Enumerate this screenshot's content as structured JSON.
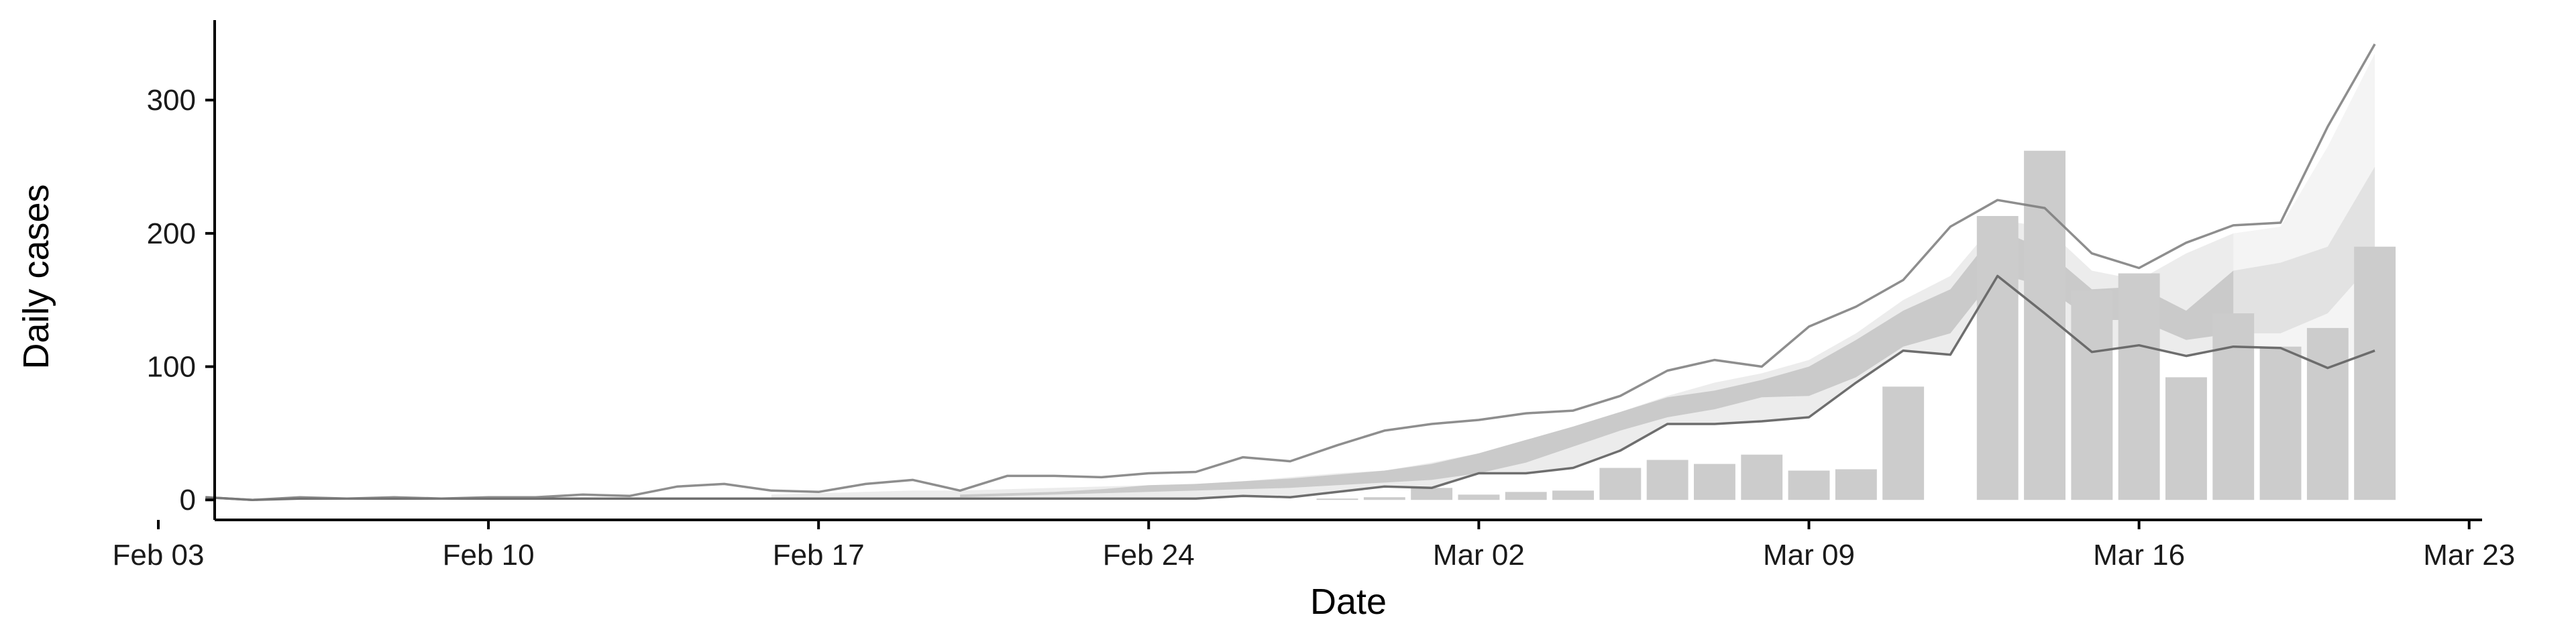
{
  "chart_data": {
    "type": "bar",
    "title": "",
    "xlabel": "Date",
    "ylabel": "Daily cases",
    "x_start_date": "2020-02-03",
    "xlim": [
      "Feb 03",
      "Mar 23"
    ],
    "ylim": [
      -15,
      360
    ],
    "grid": false,
    "legend": "none",
    "x_ticks": [
      {
        "date": "Feb 03",
        "label": "Feb 03"
      },
      {
        "date": "Feb 10",
        "label": "Feb 10"
      },
      {
        "date": "Feb 17",
        "label": "Feb 17"
      },
      {
        "date": "Feb 24",
        "label": "Feb 24"
      },
      {
        "date": "Mar 02",
        "label": "Mar 02"
      },
      {
        "date": "Mar 09",
        "label": "Mar 09"
      },
      {
        "date": "Mar 16",
        "label": "Mar 16"
      },
      {
        "date": "Mar 23",
        "label": "Mar 23"
      }
    ],
    "y_ticks": [
      {
        "value": 0,
        "label": "0"
      },
      {
        "value": 100,
        "label": "100"
      },
      {
        "value": 200,
        "label": "200"
      },
      {
        "value": 300,
        "label": "300"
      }
    ],
    "bars": {
      "name": "",
      "x": [
        "Feb 28",
        "Feb 29",
        "Mar 01",
        "Mar 02",
        "Mar 03",
        "Mar 04",
        "Mar 05",
        "Mar 06",
        "Mar 07",
        "Mar 08",
        "Mar 09",
        "Mar 10",
        "Mar 11",
        "Mar 13",
        "Mar 14",
        "Mar 15",
        "Mar 16",
        "Mar 17",
        "Mar 18",
        "Mar 19",
        "Mar 20",
        "Mar 21"
      ],
      "values": [
        1,
        2,
        9,
        4,
        6,
        7,
        24,
        30,
        27,
        34,
        22,
        23,
        85,
        213,
        262,
        157,
        170,
        92,
        140,
        115,
        129,
        190
      ]
    },
    "series": [
      {
        "name": "",
        "x": [
          "Feb 04",
          "Feb 05",
          "Feb 06",
          "Feb 07",
          "Feb 08",
          "Feb 09",
          "Feb 10",
          "Feb 11",
          "Feb 12",
          "Feb 13",
          "Feb 14",
          "Feb 15",
          "Feb 16",
          "Feb 17",
          "Feb 18",
          "Feb 19",
          "Feb 20",
          "Feb 21",
          "Feb 22",
          "Feb 23",
          "Feb 24",
          "Feb 25",
          "Feb 26",
          "Feb 27",
          "Feb 28",
          "Feb 29",
          "Mar 01",
          "Mar 02",
          "Mar 03",
          "Mar 04",
          "Mar 05",
          "Mar 06",
          "Mar 07",
          "Mar 08",
          "Mar 09",
          "Mar 10",
          "Mar 11",
          "Mar 12",
          "Mar 13",
          "Mar 14",
          "Mar 15",
          "Mar 16",
          "Mar 17",
          "Mar 18",
          "Mar 19",
          "Mar 20",
          "Mar 21"
        ],
        "values": [
          2,
          0,
          1,
          1,
          1,
          1,
          1,
          1,
          1,
          1,
          1,
          1,
          1,
          1,
          1,
          1,
          1,
          1,
          1,
          1,
          1,
          1,
          3,
          2,
          6,
          10,
          9,
          20,
          20,
          24,
          37,
          57,
          57,
          59,
          62,
          88,
          112,
          109,
          168,
          140,
          111,
          116,
          108,
          115,
          114,
          99,
          112
        ]
      },
      {
        "name": "",
        "x": [
          "Feb 04",
          "Feb 05",
          "Feb 06",
          "Feb 07",
          "Feb 08",
          "Feb 09",
          "Feb 10",
          "Feb 11",
          "Feb 12",
          "Feb 13",
          "Feb 14",
          "Feb 15",
          "Feb 16",
          "Feb 17",
          "Feb 18",
          "Feb 19",
          "Feb 20",
          "Feb 21",
          "Feb 22",
          "Feb 23",
          "Feb 24",
          "Feb 25",
          "Feb 26",
          "Feb 27",
          "Feb 28",
          "Feb 29",
          "Mar 01",
          "Mar 02",
          "Mar 03",
          "Mar 04",
          "Mar 05",
          "Mar 06",
          "Mar 07",
          "Mar 08",
          "Mar 09",
          "Mar 10",
          "Mar 11",
          "Mar 12",
          "Mar 13",
          "Mar 14",
          "Mar 15",
          "Mar 16",
          "Mar 17",
          "Mar 18",
          "Mar 19",
          "Mar 20",
          "Mar 21"
        ],
        "values": [
          2,
          0,
          2,
          1,
          2,
          1,
          2,
          2,
          4,
          3,
          10,
          12,
          7,
          6,
          12,
          15,
          7,
          18,
          18,
          17,
          20,
          21,
          32,
          29,
          41,
          52,
          57,
          60,
          65,
          67,
          78,
          97,
          105,
          100,
          130,
          145,
          165,
          205,
          225,
          219,
          185,
          174,
          193,
          206,
          208,
          280,
          342
        ]
      }
    ],
    "bands": [
      {
        "name": "outer",
        "x": [
          "Feb 16",
          "Feb 17",
          "Feb 18",
          "Feb 19",
          "Feb 20",
          "Feb 21",
          "Feb 22",
          "Feb 23",
          "Feb 24",
          "Feb 25",
          "Feb 26",
          "Feb 27",
          "Feb 28",
          "Feb 29",
          "Mar 01",
          "Mar 02",
          "Mar 03",
          "Mar 04",
          "Mar 05",
          "Mar 06",
          "Mar 07",
          "Mar 08",
          "Mar 09",
          "Mar 10",
          "Mar 11",
          "Mar 12",
          "Mar 13",
          "Mar 14",
          "Mar 15",
          "Mar 16",
          "Mar 17",
          "Mar 18",
          "Mar 19",
          "Mar 20",
          "Mar 21"
        ],
        "lower": [
          1,
          1,
          1,
          1,
          1,
          1,
          1,
          1,
          1,
          1,
          3,
          2,
          6,
          10,
          9,
          20,
          20,
          24,
          37,
          57,
          57,
          59,
          62,
          88,
          112,
          109,
          168,
          140,
          111,
          116,
          108,
          115,
          114,
          99,
          112
        ],
        "upper": [
          4,
          5,
          6,
          7,
          7,
          8,
          9,
          10,
          11,
          12,
          14,
          17,
          20,
          22,
          28,
          35,
          45,
          55,
          66,
          78,
          88,
          95,
          105,
          125,
          150,
          168,
          210,
          205,
          172,
          165,
          185,
          200,
          205,
          265,
          335
        ]
      },
      {
        "name": "inner",
        "x": [
          "Feb 20",
          "Feb 21",
          "Feb 22",
          "Feb 23",
          "Feb 24",
          "Feb 25",
          "Feb 26",
          "Feb 27",
          "Feb 28",
          "Feb 29",
          "Mar 01",
          "Mar 02",
          "Mar 03",
          "Mar 04",
          "Mar 05",
          "Mar 06",
          "Mar 07",
          "Mar 08",
          "Mar 09",
          "Mar 10",
          "Mar 11",
          "Mar 12",
          "Mar 13",
          "Mar 14",
          "Mar 15",
          "Mar 16",
          "Mar 17",
          "Mar 18",
          "Mar 19",
          "Mar 20",
          "Mar 21"
        ],
        "lower": [
          2,
          3,
          4,
          5,
          6,
          7,
          8,
          9,
          11,
          13,
          15,
          20,
          28,
          40,
          52,
          62,
          68,
          77,
          78,
          92,
          115,
          125,
          170,
          160,
          135,
          135,
          120,
          125,
          125,
          140,
          180
        ],
        "upper": [
          4,
          5,
          6,
          8,
          11,
          12,
          14,
          16,
          19,
          22,
          27,
          35,
          45,
          55,
          66,
          77,
          82,
          90,
          100,
          120,
          142,
          158,
          203,
          188,
          158,
          160,
          142,
          172,
          178,
          190,
          250
        ]
      }
    ],
    "colors": {
      "bar": "#cccccc",
      "outer_band": "#ebebeb",
      "inner_band": "#c7c7c7",
      "line_lower": "#666666",
      "line_upper": "#7a7a7a",
      "axis": "#000000"
    }
  }
}
